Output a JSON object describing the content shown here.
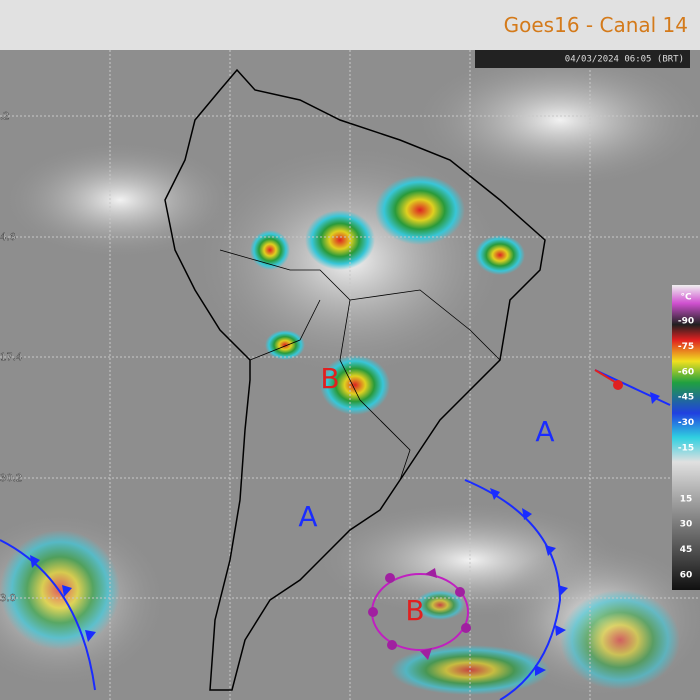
{
  "header": {
    "title": "Goes16 - Canal 14",
    "timestamp": "04/03/2024 06:05 (BRT)"
  },
  "latitude_labels": [
    ".2",
    "4.6",
    "17.4",
    "30.2",
    "3.0"
  ],
  "pressure_systems": [
    "B",
    "A",
    "A",
    "B"
  ],
  "colorbar": {
    "unit": "°C",
    "ticks": [
      -90,
      -75,
      -60,
      -45,
      -30,
      -15,
      15,
      30,
      45,
      60
    ]
  }
}
